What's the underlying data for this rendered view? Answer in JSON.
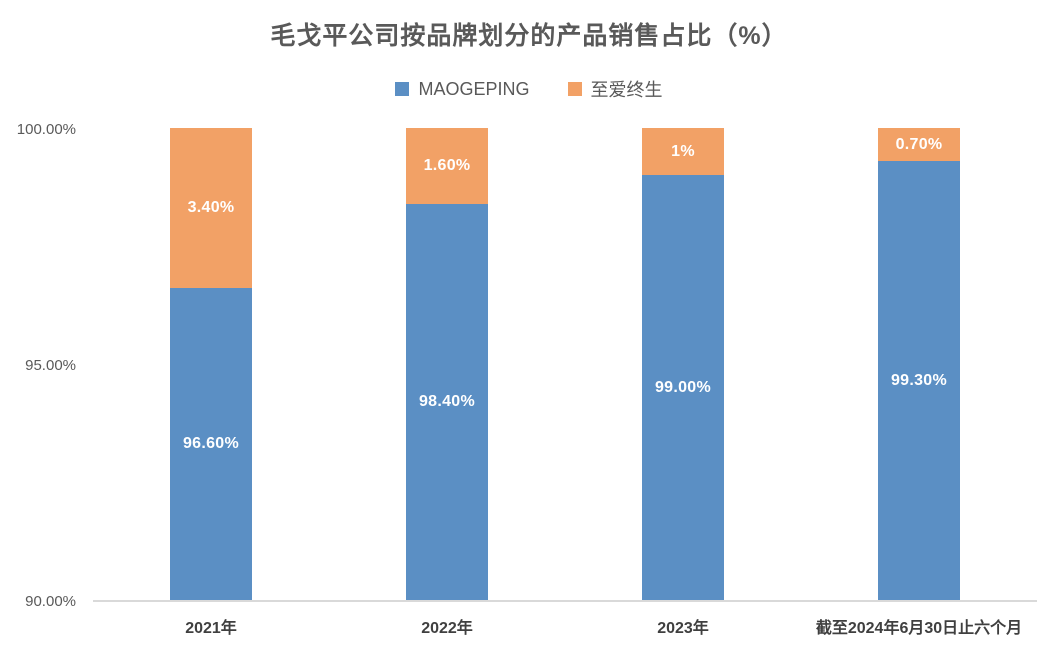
{
  "chart_data": {
    "type": "bar",
    "stacked": true,
    "title": "毛戈平公司按品牌划分的产品销售占比（%）",
    "categories": [
      "2021年",
      "2022年",
      "2023年",
      "截至2024年6月30日止六个月"
    ],
    "series": [
      {
        "name": "MAOGEPING",
        "color": "#5B8FC4",
        "values": [
          96.6,
          98.4,
          99.0,
          99.3
        ],
        "labels": [
          "96.60%",
          "98.40%",
          "99.00%",
          "99.30%"
        ]
      },
      {
        "name": "至爱终生",
        "color": "#F2A166",
        "values": [
          3.4,
          1.6,
          1.0,
          0.7
        ],
        "labels": [
          "3.40%",
          "1.60%",
          "1%",
          "0.70%"
        ]
      }
    ],
    "ylim": [
      90,
      100
    ],
    "yticks": [
      "90.00%",
      "95.00%",
      "100.00%"
    ],
    "legend_position": "top",
    "grid": false,
    "label_color": "#ffffff",
    "axis_line_color": "#D9D9D9",
    "text_color": "#595959"
  }
}
